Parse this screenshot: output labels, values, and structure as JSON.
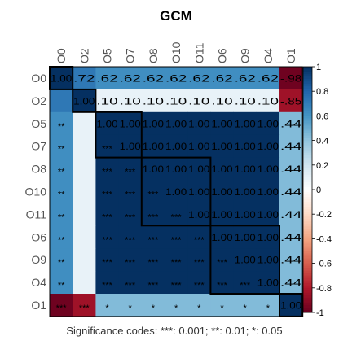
{
  "chart_data": {
    "type": "heatmap",
    "title": "GCM",
    "labels": [
      "O0",
      "O2",
      "O5",
      "O7",
      "O8",
      "O10",
      "O11",
      "O6",
      "O9",
      "O4",
      "O1"
    ],
    "matrix": [
      [
        1.0,
        0.72,
        0.62,
        0.62,
        0.62,
        0.62,
        0.62,
        0.62,
        0.62,
        0.62,
        -0.98
      ],
      [
        0.72,
        1.0,
        0.1,
        0.1,
        0.1,
        0.1,
        0.1,
        0.1,
        0.1,
        0.1,
        -0.85
      ],
      [
        0.62,
        0.1,
        1.0,
        1.0,
        1.0,
        1.0,
        1.0,
        1.0,
        1.0,
        1.0,
        0.44
      ],
      [
        0.62,
        0.1,
        1.0,
        1.0,
        1.0,
        1.0,
        1.0,
        1.0,
        1.0,
        1.0,
        0.44
      ],
      [
        0.62,
        0.1,
        1.0,
        1.0,
        1.0,
        1.0,
        1.0,
        1.0,
        1.0,
        1.0,
        0.44
      ],
      [
        0.62,
        0.1,
        1.0,
        1.0,
        1.0,
        1.0,
        1.0,
        1.0,
        1.0,
        1.0,
        0.44
      ],
      [
        0.62,
        0.1,
        1.0,
        1.0,
        1.0,
        1.0,
        1.0,
        1.0,
        1.0,
        1.0,
        0.44
      ],
      [
        0.62,
        0.1,
        1.0,
        1.0,
        1.0,
        1.0,
        1.0,
        1.0,
        1.0,
        1.0,
        0.44
      ],
      [
        0.62,
        0.1,
        1.0,
        1.0,
        1.0,
        1.0,
        1.0,
        1.0,
        1.0,
        1.0,
        0.44
      ],
      [
        0.62,
        0.1,
        1.0,
        1.0,
        1.0,
        1.0,
        1.0,
        1.0,
        1.0,
        1.0,
        0.44
      ],
      [
        -0.98,
        -0.85,
        0.44,
        0.44,
        0.44,
        0.44,
        0.44,
        0.44,
        0.44,
        0.44,
        1.0
      ]
    ],
    "significance_lower": [
      [
        "",
        "",
        "",
        "",
        "",
        "",
        "",
        "",
        "",
        "",
        ""
      ],
      [
        "",
        "",
        "",
        "",
        "",
        "",
        "",
        "",
        "",
        "",
        ""
      ],
      [
        "**",
        "",
        "",
        "",
        "",
        "",
        "",
        "",
        "",
        "",
        ""
      ],
      [
        "**",
        "",
        "***",
        "",
        "",
        "",
        "",
        "",
        "",
        "",
        ""
      ],
      [
        "**",
        "",
        "***",
        "***",
        "",
        "",
        "",
        "",
        "",
        "",
        ""
      ],
      [
        "**",
        "",
        "***",
        "***",
        "***",
        "",
        "",
        "",
        "",
        "",
        ""
      ],
      [
        "**",
        "",
        "***",
        "***",
        "***",
        "***",
        "",
        "",
        "",
        "",
        ""
      ],
      [
        "**",
        "",
        "***",
        "***",
        "***",
        "***",
        "***",
        "",
        "",
        "",
        ""
      ],
      [
        "**",
        "",
        "***",
        "***",
        "***",
        "***",
        "***",
        "***",
        "",
        "",
        ""
      ],
      [
        "**",
        "",
        "***",
        "***",
        "***",
        "***",
        "***",
        "***",
        "***",
        "",
        ""
      ],
      [
        "***",
        "***",
        "*",
        "*",
        "*",
        "*",
        "*",
        "*",
        "*",
        "*",
        ""
      ]
    ],
    "clusters": [
      {
        "from": 0,
        "to": 0
      },
      {
        "from": 1,
        "to": 1
      },
      {
        "from": 2,
        "to": 3
      },
      {
        "from": 4,
        "to": 6
      },
      {
        "from": 7,
        "to": 9
      },
      {
        "from": 10,
        "to": 10
      }
    ],
    "colorbar": {
      "range": [
        -1,
        1
      ],
      "ticks": [
        "1",
        "0.8",
        "0.6",
        "0.4",
        "0.2",
        "0",
        "-0.2",
        "-0.4",
        "-0.6",
        "-0.8",
        "-1"
      ],
      "colors": [
        "#67001F",
        "#B2182B",
        "#D6604D",
        "#F4A582",
        "#FDDBC7",
        "#FFFFFF",
        "#D1E5F0",
        "#92C5DE",
        "#4393C3",
        "#2166AC",
        "#053061"
      ]
    },
    "footnote": "Significance codes:  ***: 0.001;  **: 0.01;  *: 0.05"
  }
}
